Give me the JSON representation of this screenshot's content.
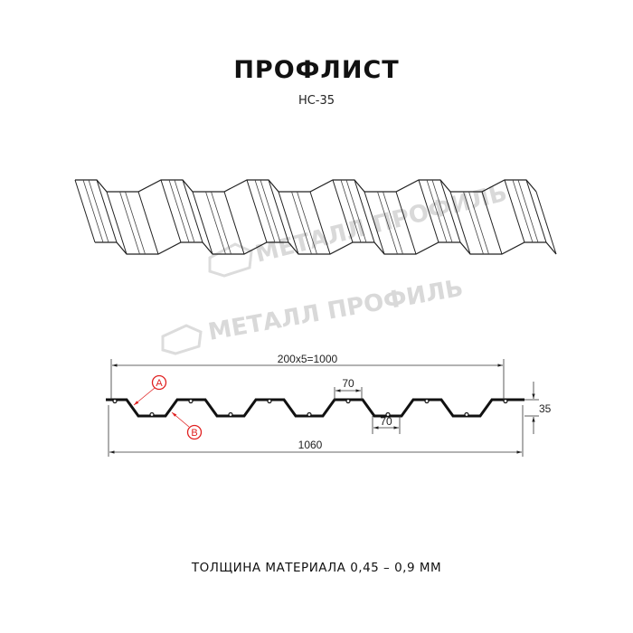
{
  "header": {
    "title": "ПРОФЛИСТ",
    "subtitle": "НС-35"
  },
  "watermark": {
    "text": "МЕТАЛЛ ПРОФИЛЬ"
  },
  "drawing": {
    "dim_top": "200x5=1000",
    "dim_crest": "70",
    "dim_trough": "70",
    "dim_height": "35",
    "dim_total": "1060",
    "label_a": "A",
    "label_b": "B",
    "label_color": "#e02020"
  },
  "footer": {
    "text": "ТОЛЩИНА МАТЕРИАЛА 0,45 – 0,9 ММ"
  }
}
